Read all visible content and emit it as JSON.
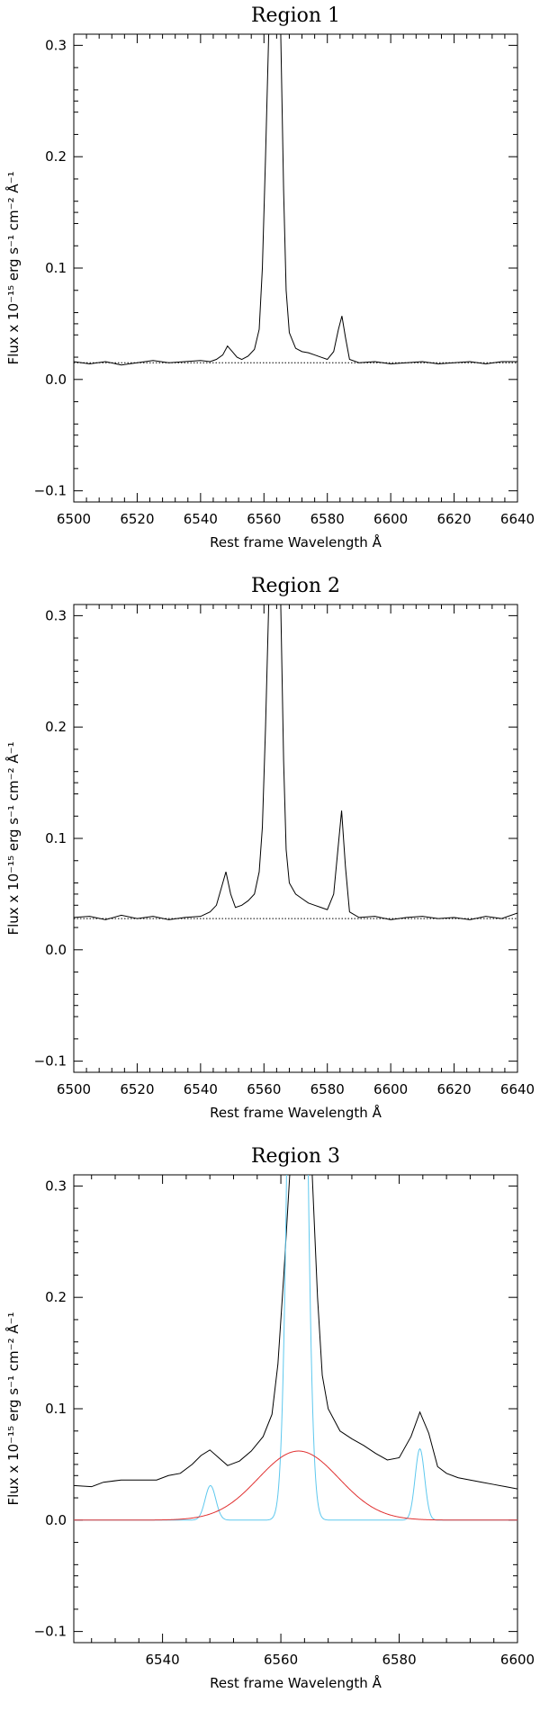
{
  "chart_data": [
    {
      "type": "line",
      "title": "Region 1",
      "xlabel": "Rest frame Wavelength Å",
      "ylabel": "Flux x 10⁻¹⁵ erg s⁻¹ cm⁻² Å⁻¹",
      "xlim": [
        6500,
        6640
      ],
      "ylim": [
        -0.11,
        0.31
      ],
      "xticks": [
        6500,
        6520,
        6540,
        6560,
        6580,
        6600,
        6620,
        6640
      ],
      "yticks": [
        -0.1,
        0.0,
        0.1,
        0.2,
        0.3
      ],
      "ytick_labels": [
        "−0.1",
        "0.0",
        "0.1",
        "0.2",
        "0.3"
      ],
      "continuum": 0.015,
      "series": [
        {
          "color": "#000000",
          "style": "solid",
          "x": [
            6500,
            6505,
            6510,
            6515,
            6520,
            6525,
            6530,
            6535,
            6540,
            6543,
            6545,
            6547,
            6548.5,
            6550,
            6551.5,
            6553,
            6555,
            6557,
            6558.5,
            6559.5,
            6560.5,
            6561.5,
            6562.8,
            6564,
            6565.3,
            6566.2,
            6567,
            6568,
            6570,
            6572,
            6574,
            6576,
            6578,
            6580,
            6582,
            6583.5,
            6584.6,
            6585.7,
            6587,
            6590,
            6595,
            6600,
            6605,
            6610,
            6615,
            6620,
            6625,
            6630,
            6635,
            6640
          ],
          "y": [
            0.016,
            0.014,
            0.016,
            0.013,
            0.015,
            0.017,
            0.015,
            0.016,
            0.017,
            0.016,
            0.018,
            0.022,
            0.03,
            0.025,
            0.02,
            0.018,
            0.021,
            0.027,
            0.045,
            0.1,
            0.2,
            0.31,
            0.45,
            0.45,
            0.31,
            0.17,
            0.08,
            0.042,
            0.028,
            0.025,
            0.024,
            0.022,
            0.02,
            0.018,
            0.025,
            0.045,
            0.057,
            0.038,
            0.018,
            0.015,
            0.016,
            0.014,
            0.015,
            0.016,
            0.014,
            0.015,
            0.016,
            0.014,
            0.016,
            0.016
          ]
        },
        {
          "color": "#000000",
          "style": "dotted",
          "x": [
            6500,
            6640
          ],
          "y": [
            0.015,
            0.015
          ]
        }
      ]
    },
    {
      "type": "line",
      "title": "Region 2",
      "xlabel": "Rest frame Wavelength Å",
      "ylabel": "Flux x 10⁻¹⁵ erg s⁻¹ cm⁻² Å⁻¹",
      "xlim": [
        6500,
        6640
      ],
      "ylim": [
        -0.11,
        0.31
      ],
      "xticks": [
        6500,
        6520,
        6540,
        6560,
        6580,
        6600,
        6620,
        6640
      ],
      "yticks": [
        -0.1,
        0.0,
        0.1,
        0.2,
        0.3
      ],
      "ytick_labels": [
        "−0.1",
        "0.0",
        "0.1",
        "0.2",
        "0.3"
      ],
      "continuum": 0.028,
      "series": [
        {
          "color": "#000000",
          "style": "solid",
          "x": [
            6500,
            6505,
            6510,
            6515,
            6520,
            6525,
            6530,
            6535,
            6540,
            6543,
            6545,
            6546.5,
            6548,
            6549.5,
            6551,
            6553,
            6555,
            6557,
            6558.5,
            6559.5,
            6560.5,
            6561.5,
            6562.8,
            6564,
            6565.3,
            6566.2,
            6567,
            6568,
            6570,
            6572,
            6574,
            6576,
            6578,
            6580,
            6582,
            6583.5,
            6584.5,
            6585.7,
            6587,
            6590,
            6595,
            6600,
            6605,
            6610,
            6615,
            6620,
            6625,
            6630,
            6635,
            6640
          ],
          "y": [
            0.029,
            0.03,
            0.027,
            0.031,
            0.028,
            0.03,
            0.027,
            0.029,
            0.03,
            0.034,
            0.04,
            0.055,
            0.07,
            0.05,
            0.038,
            0.04,
            0.044,
            0.05,
            0.07,
            0.11,
            0.2,
            0.31,
            0.45,
            0.45,
            0.31,
            0.17,
            0.09,
            0.06,
            0.05,
            0.046,
            0.042,
            0.04,
            0.038,
            0.036,
            0.05,
            0.095,
            0.125,
            0.075,
            0.034,
            0.029,
            0.03,
            0.027,
            0.029,
            0.03,
            0.028,
            0.029,
            0.027,
            0.03,
            0.028,
            0.033
          ]
        },
        {
          "color": "#000000",
          "style": "dotted",
          "x": [
            6500,
            6640
          ],
          "y": [
            0.028,
            0.028
          ]
        }
      ]
    },
    {
      "type": "line",
      "title": "Region 3",
      "xlabel": "Rest frame Wavelength Å",
      "ylabel": "Flux x 10⁻¹⁵ erg s⁻¹ cm⁻² Å⁻¹",
      "xlim": [
        6525,
        6600
      ],
      "ylim": [
        -0.11,
        0.31
      ],
      "xticks": [
        6540,
        6560,
        6580,
        6600
      ],
      "yticks": [
        -0.1,
        0.0,
        0.1,
        0.2,
        0.3
      ],
      "ytick_labels": [
        "−0.1",
        "0.0",
        "0.1",
        "0.2",
        "0.3"
      ],
      "series": [
        {
          "color": "#000000",
          "style": "solid",
          "x": [
            6525,
            6528,
            6530,
            6533,
            6536,
            6539,
            6541,
            6543,
            6545,
            6546.5,
            6548,
            6549.5,
            6551,
            6553,
            6555,
            6557,
            6558.5,
            6559.5,
            6560.5,
            6561.5,
            6562.8,
            6564,
            6565.3,
            6566.2,
            6567,
            6568,
            6570,
            6572,
            6574,
            6576,
            6578,
            6580,
            6582,
            6583.5,
            6585,
            6586.5,
            6588,
            6590,
            6592,
            6594,
            6596,
            6598,
            6600
          ],
          "y": [
            0.031,
            0.03,
            0.034,
            0.036,
            0.036,
            0.036,
            0.04,
            0.042,
            0.05,
            0.058,
            0.063,
            0.056,
            0.049,
            0.053,
            0.062,
            0.075,
            0.095,
            0.14,
            0.22,
            0.31,
            0.45,
            0.45,
            0.31,
            0.2,
            0.13,
            0.1,
            0.08,
            0.073,
            0.067,
            0.06,
            0.054,
            0.056,
            0.075,
            0.097,
            0.078,
            0.048,
            0.042,
            0.038,
            0.036,
            0.034,
            0.032,
            0.03,
            0.028
          ]
        },
        {
          "color": "#5ec8ee",
          "style": "solid",
          "gaussians": [
            {
              "center": 6548.1,
              "amplitude": 0.031,
              "sigma": 0.9
            },
            {
              "center": 6562.8,
              "amplitude": 1.0,
              "sigma": 1.2
            },
            {
              "center": 6583.5,
              "amplitude": 0.064,
              "sigma": 0.8
            }
          ]
        },
        {
          "color": "#e03030",
          "style": "solid",
          "gaussians": [
            {
              "center": 6563.0,
              "amplitude": 0.062,
              "sigma": 6.8
            }
          ]
        }
      ]
    }
  ]
}
